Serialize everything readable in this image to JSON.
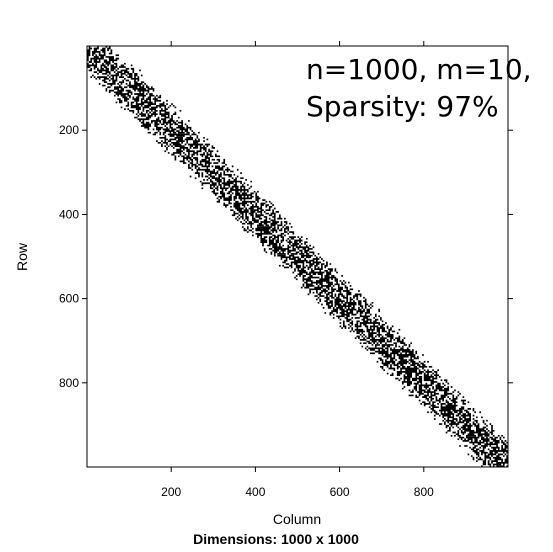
{
  "chart_data": {
    "type": "heatmap",
    "subtype": "sparse-matrix-pattern",
    "title": "",
    "xlabel": "Column",
    "ylabel": "Row",
    "caption": "Dimensions: 1000 x 1000",
    "annotations": [
      "n=1000, m=10,",
      "Sparsity: 97%"
    ],
    "annotation_position": "top-right",
    "xlim": [
      0,
      1000
    ],
    "ylim": [
      1000,
      0
    ],
    "y_axis_inverted": true,
    "x_ticks": [
      200,
      400,
      600,
      800
    ],
    "y_ticks": [
      200,
      400,
      600,
      800
    ],
    "tick_labels": {
      "x": [
        "200",
        "400",
        "600",
        "800"
      ],
      "y": [
        "200",
        "400",
        "600",
        "800"
      ]
    },
    "grid": false,
    "legend": "none",
    "matrix": {
      "n_rows": 1000,
      "n_cols": 1000,
      "pattern": "banded-diagonal",
      "sparsity_percent": 97,
      "band_half_width": 60,
      "nonzero_color": "#000000",
      "zero_color": "#ffffff"
    }
  }
}
